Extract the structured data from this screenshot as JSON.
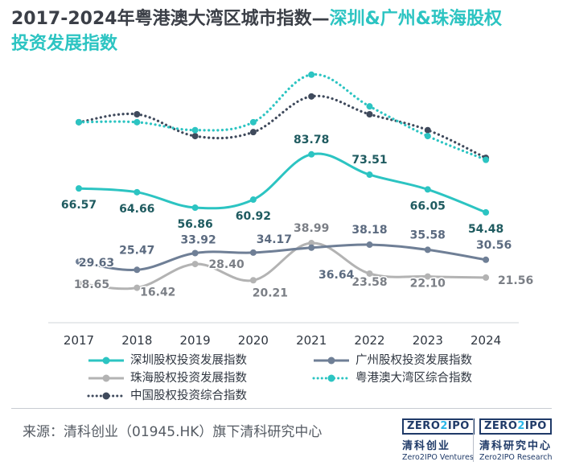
{
  "title_line1": "2017-2024年粤港澳大湾区城市指数—",
  "title_highlight_line1": "深圳&广州&珠海股权",
  "title_highlight_line2": "投资发展指数",
  "chart_data": {
    "type": "line",
    "categories": [
      "2017",
      "2018",
      "2019",
      "2020",
      "2021",
      "2022",
      "2023",
      "2024"
    ],
    "ylim": [
      0,
      130
    ],
    "series": [
      {
        "key": "shenzhen",
        "name": "深圳股权投资发展指数",
        "color": "#2cc4c2",
        "style": "solid",
        "labeled": true,
        "values": [
          66.57,
          64.66,
          56.86,
          60.92,
          83.78,
          73.51,
          66.05,
          54.48
        ]
      },
      {
        "key": "guangzhou",
        "name": "广州股权投资发展指数",
        "color": "#6f7f96",
        "style": "solid",
        "labeled": true,
        "values": [
          29.63,
          25.47,
          33.92,
          34.17,
          36.64,
          38.18,
          35.58,
          30.56
        ]
      },
      {
        "key": "zhuhai",
        "name": "珠海股权投资发展指数",
        "color": "#b3b3b3",
        "style": "solid",
        "labeled": true,
        "values": [
          18.65,
          16.42,
          28.4,
          20.21,
          38.99,
          23.58,
          22.1,
          21.56
        ]
      },
      {
        "key": "gba",
        "name": "粤港澳大湾区综合指数",
        "color": "#2cc4c2",
        "style": "dotted",
        "labeled": false,
        "values": [
          100,
          100,
          96,
          100,
          124,
          108,
          93,
          81
        ]
      },
      {
        "key": "china",
        "name": "中国股权投资综合指数",
        "color": "#3f4a5c",
        "style": "dotted",
        "labeled": false,
        "values": [
          100,
          104,
          93,
          95,
          113,
          104,
          96,
          82
        ]
      }
    ]
  },
  "source_text": "来源：清科创业（01945.HK）旗下清科研究中心",
  "logos": [
    {
      "prefix": "ZERO",
      "two": "2",
      "suffix": "IPO",
      "cn": "清科创业",
      "en": "Zero2IPO Ventures"
    },
    {
      "prefix": "ZERO",
      "two": "2",
      "suffix": "IPO",
      "cn": "清科研究中心",
      "en": "Zero2IPO Research"
    }
  ]
}
